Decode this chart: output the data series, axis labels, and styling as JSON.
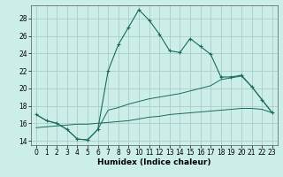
{
  "title": "",
  "xlabel": "Humidex (Indice chaleur)",
  "xlim": [
    -0.5,
    23.5
  ],
  "ylim": [
    13.5,
    29.5
  ],
  "yticks": [
    14,
    16,
    18,
    20,
    22,
    24,
    26,
    28
  ],
  "xticks": [
    0,
    1,
    2,
    3,
    4,
    5,
    6,
    7,
    8,
    9,
    10,
    11,
    12,
    13,
    14,
    15,
    16,
    17,
    18,
    19,
    20,
    21,
    22,
    23
  ],
  "bg_color": "#cceee8",
  "grid_color": "#aacccc",
  "line_color": "#1a6b5a",
  "line1_x": [
    0,
    1,
    2,
    3,
    4,
    5,
    6,
    7,
    8,
    9,
    10,
    11,
    12,
    13,
    14,
    15,
    16,
    17,
    18,
    19,
    20,
    21,
    22,
    23
  ],
  "line1_y": [
    17.0,
    16.3,
    16.0,
    15.3,
    14.2,
    14.1,
    15.3,
    22.0,
    25.0,
    27.0,
    29.0,
    27.8,
    26.2,
    24.3,
    24.1,
    25.7,
    24.8,
    23.9,
    21.3,
    21.3,
    21.5,
    20.2,
    18.7,
    17.2
  ],
  "line2_x": [
    0,
    1,
    2,
    3,
    4,
    5,
    6,
    7,
    8,
    9,
    10,
    11,
    12,
    13,
    14,
    15,
    16,
    17,
    18,
    19,
    20,
    21,
    22,
    23
  ],
  "line2_y": [
    17.0,
    16.3,
    16.0,
    15.3,
    14.2,
    14.1,
    15.3,
    17.5,
    17.8,
    18.2,
    18.5,
    18.8,
    19.0,
    19.2,
    19.4,
    19.7,
    20.0,
    20.3,
    21.0,
    21.2,
    21.4,
    20.2,
    18.7,
    17.2
  ],
  "line3_x": [
    0,
    1,
    2,
    3,
    4,
    5,
    6,
    7,
    8,
    9,
    10,
    11,
    12,
    13,
    14,
    15,
    16,
    17,
    18,
    19,
    20,
    21,
    22,
    23
  ],
  "line3_y": [
    15.5,
    15.6,
    15.7,
    15.8,
    15.9,
    15.9,
    16.0,
    16.1,
    16.2,
    16.3,
    16.5,
    16.7,
    16.8,
    17.0,
    17.1,
    17.2,
    17.3,
    17.4,
    17.5,
    17.6,
    17.7,
    17.7,
    17.6,
    17.2
  ],
  "tick_fontsize": 5.5,
  "xlabel_fontsize": 6.5
}
